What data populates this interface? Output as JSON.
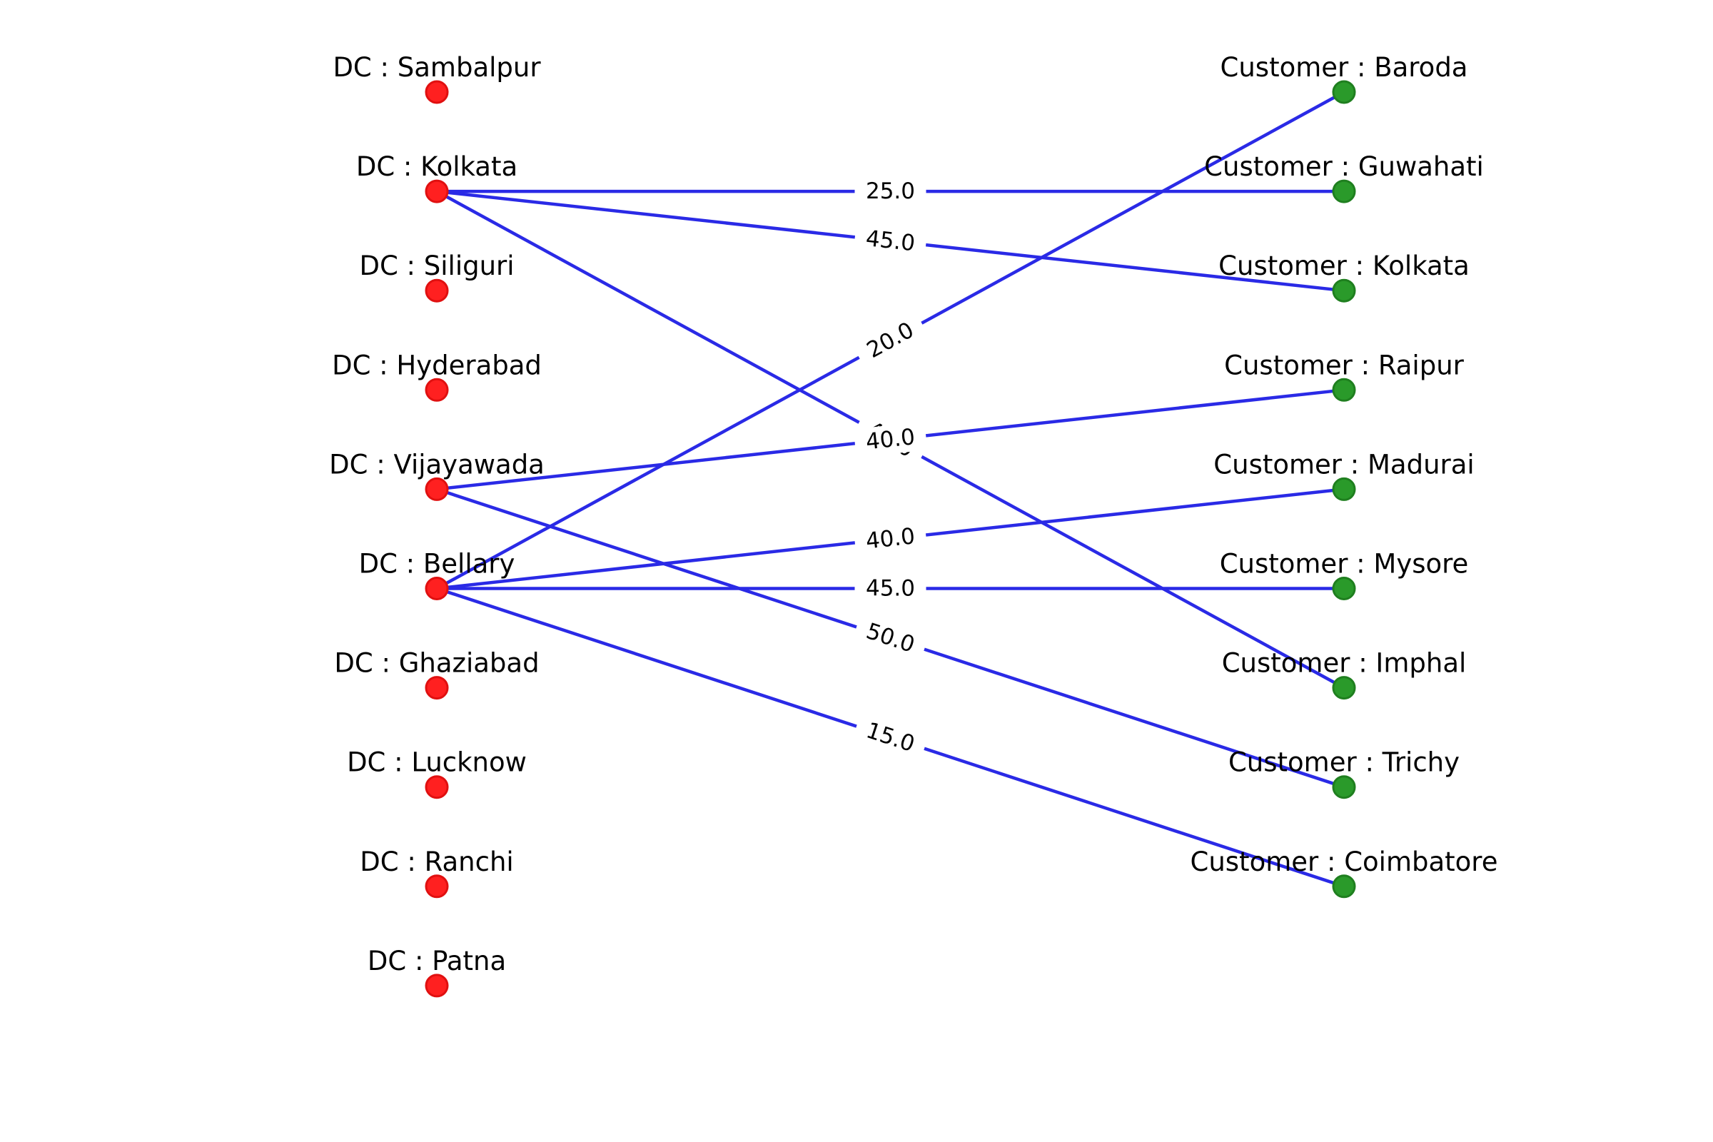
{
  "colors": {
    "dc_fill": "#ff2020",
    "dc_stroke": "#e01010",
    "customer_fill": "#2a9a2a",
    "customer_stroke": "#1f7f1f",
    "edge": "#2a2ae6"
  },
  "dc_nodes": [
    {
      "label": "DC : Sambalpur"
    },
    {
      "label": "DC : Kolkata"
    },
    {
      "label": "DC : Siliguri"
    },
    {
      "label": "DC : Hyderabad"
    },
    {
      "label": "DC : Vijayawada"
    },
    {
      "label": "DC : Bellary"
    },
    {
      "label": "DC : Ghaziabad"
    },
    {
      "label": "DC : Lucknow"
    },
    {
      "label": "DC : Ranchi"
    },
    {
      "label": "DC : Patna"
    }
  ],
  "customer_nodes": [
    {
      "label": "Customer : Baroda"
    },
    {
      "label": "Customer : Guwahati"
    },
    {
      "label": "Customer : Kolkata"
    },
    {
      "label": "Customer : Raipur"
    },
    {
      "label": "Customer : Madurai"
    },
    {
      "label": "Customer : Mysore"
    },
    {
      "label": "Customer : Imphal"
    },
    {
      "label": "Customer : Trichy"
    },
    {
      "label": "Customer : Coimbatore"
    }
  ],
  "edges": [
    {
      "from": 1,
      "to": 1,
      "label": "25.0"
    },
    {
      "from": 1,
      "to": 2,
      "label": "45.0"
    },
    {
      "from": 1,
      "to": 6,
      "label": "40.0"
    },
    {
      "from": 4,
      "to": 3,
      "label": "40.0"
    },
    {
      "from": 4,
      "to": 7,
      "label": "50.0"
    },
    {
      "from": 5,
      "to": 0,
      "label": "20.0"
    },
    {
      "from": 5,
      "to": 4,
      "label": "40.0"
    },
    {
      "from": 5,
      "to": 5,
      "label": "45.0"
    },
    {
      "from": 5,
      "to": 8,
      "label": "15.0"
    }
  ]
}
